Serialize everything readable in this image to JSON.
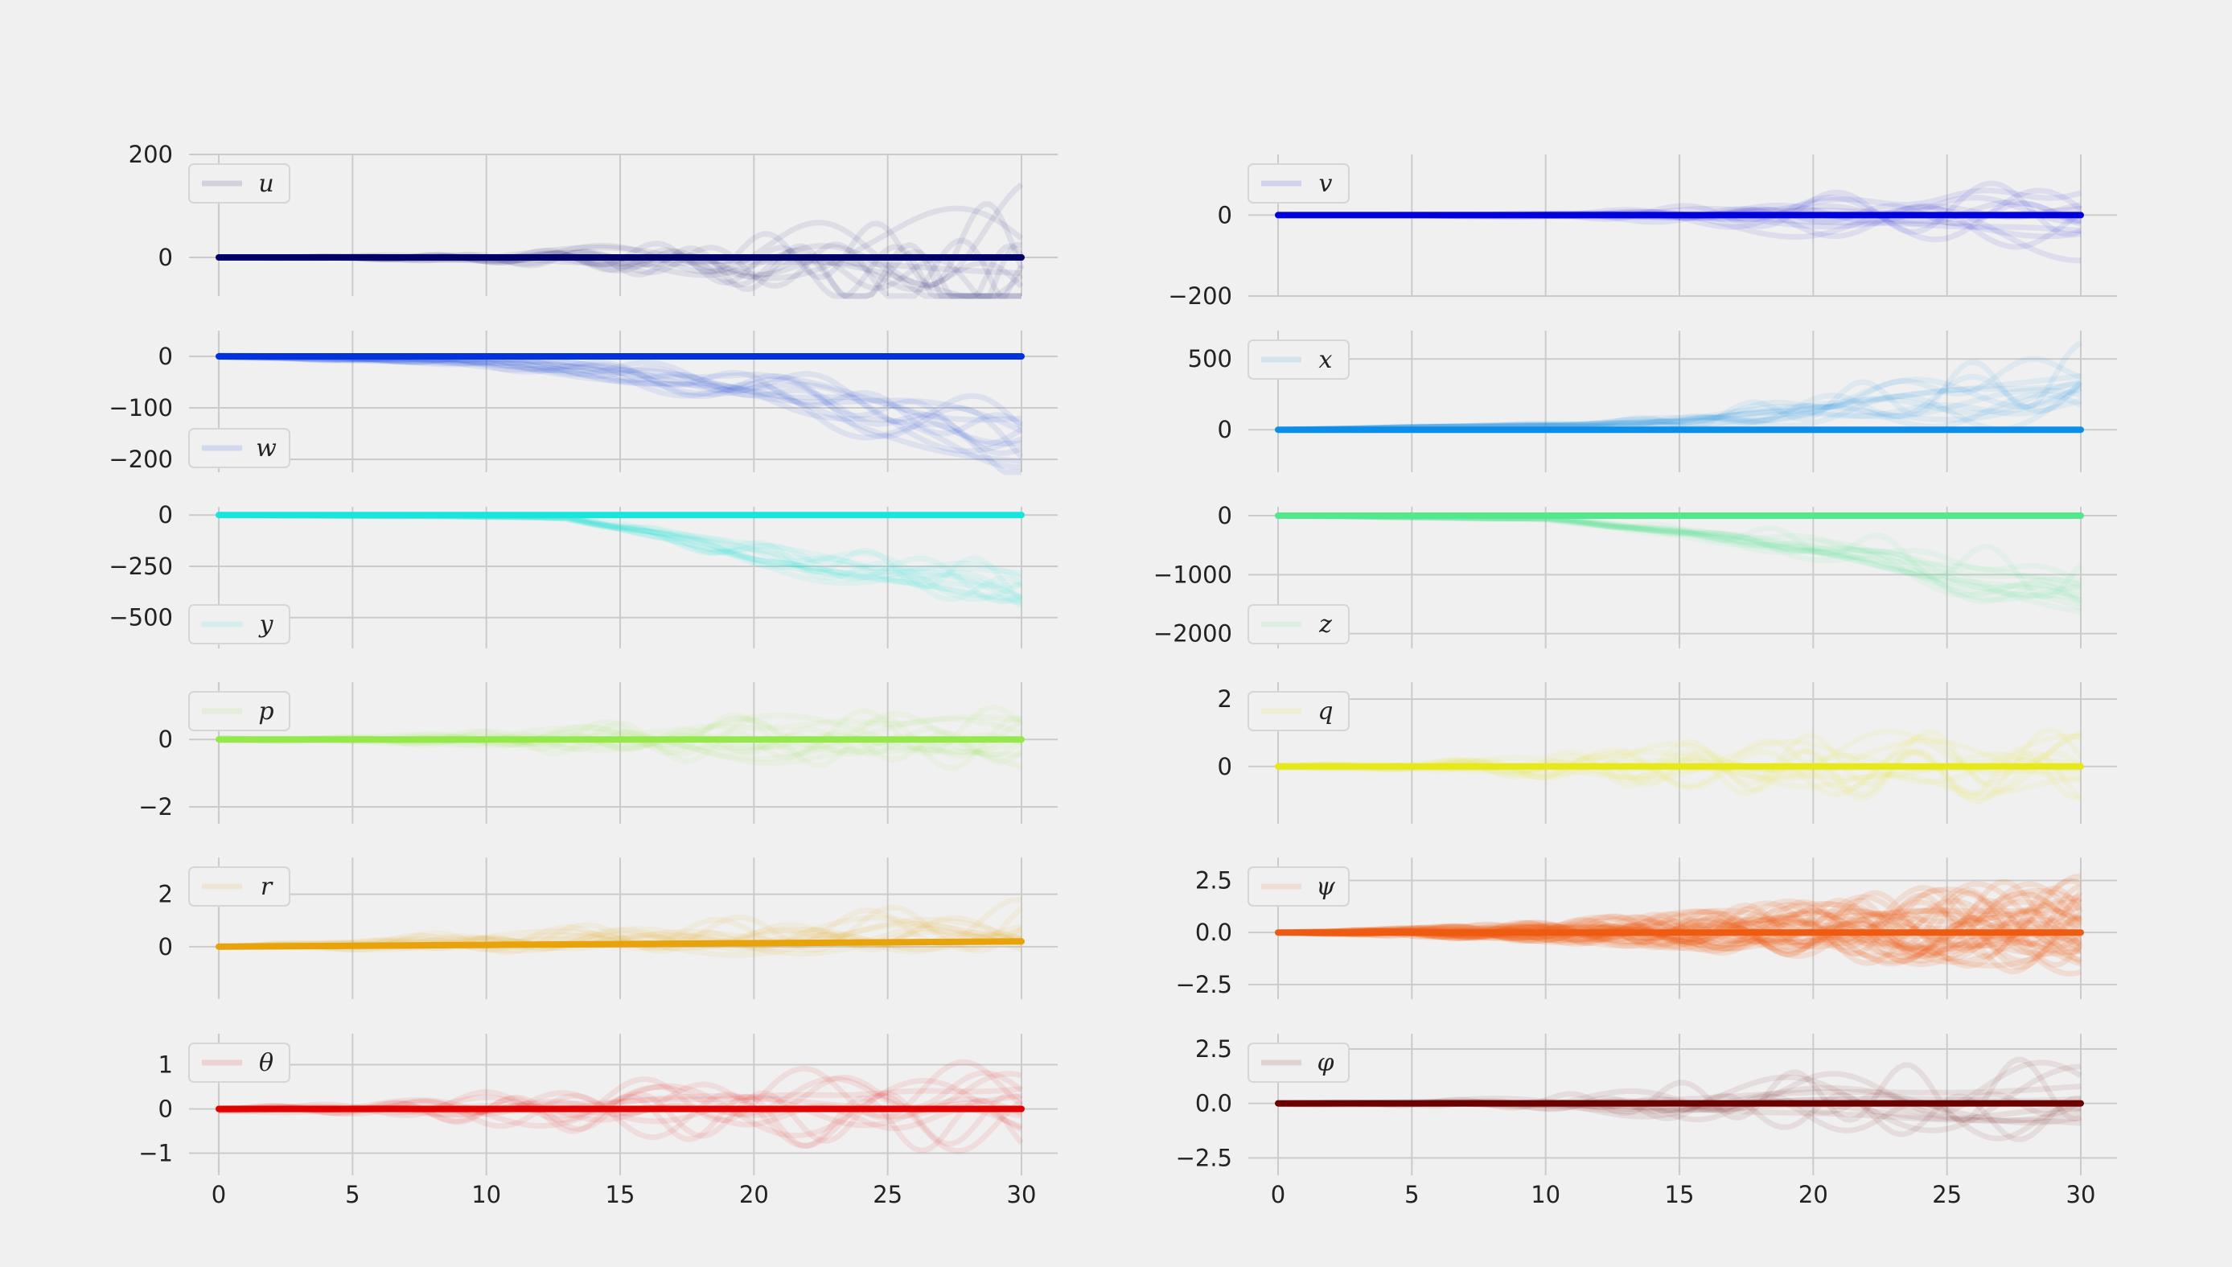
{
  "chart_data": {
    "type": "line",
    "layout": "6 rows x 2 columns of subplots with shared x axis",
    "x_range": [
      0,
      30
    ],
    "xticks": [
      0,
      5,
      10,
      15,
      20,
      25,
      30
    ],
    "xticklabels": [
      "0",
      "5",
      "10",
      "15",
      "20",
      "25",
      "30"
    ],
    "grid": true,
    "subplots": [
      {
        "label": "u",
        "color": "#000066",
        "legend": "upper-left",
        "ylim": [
          -75,
          200
        ],
        "yticks": [
          0,
          200
        ],
        "yticklabels": [
          "0",
          "200"
        ],
        "mean": [
          [
            0,
            0
          ],
          [
            30,
            0
          ]
        ],
        "spread": [
          [
            0,
            0
          ],
          [
            5,
            5
          ],
          [
            10,
            15
          ],
          [
            15,
            40
          ],
          [
            20,
            80
          ],
          [
            25,
            120
          ],
          [
            30,
            200
          ]
        ]
      },
      {
        "label": "v",
        "color": "#0000dd",
        "legend": "upper-left",
        "ylim": [
          -200,
          150
        ],
        "yticks": [
          0,
          -200
        ],
        "yticklabels": [
          "0",
          "−200"
        ],
        "mean": [
          [
            0,
            0
          ],
          [
            30,
            0
          ]
        ],
        "spread": [
          [
            0,
            0
          ],
          [
            5,
            3
          ],
          [
            10,
            10
          ],
          [
            15,
            40
          ],
          [
            20,
            90
          ],
          [
            25,
            120
          ],
          [
            30,
            140
          ]
        ]
      },
      {
        "label": "w",
        "color": "#0033dd",
        "legend": "lower-left",
        "ylim": [
          -225,
          50
        ],
        "yticks": [
          0,
          -100,
          -200
        ],
        "yticklabels": [
          "0",
          "−100",
          "−200"
        ],
        "mean": [
          [
            0,
            0
          ],
          [
            30,
            0
          ]
        ],
        "spread": [
          [
            0,
            5
          ],
          [
            5,
            8
          ],
          [
            10,
            20
          ],
          [
            15,
            40
          ],
          [
            20,
            60
          ],
          [
            25,
            80
          ],
          [
            30,
            100
          ]
        ],
        "trend": [
          [
            0,
            0
          ],
          [
            10,
            -10
          ],
          [
            20,
            -60
          ],
          [
            30,
            -170
          ]
        ]
      },
      {
        "label": "x",
        "color": "#0a8ee8",
        "legend": "upper-left",
        "ylim": [
          -300,
          700
        ],
        "yticks": [
          500,
          0
        ],
        "yticklabels": [
          "500",
          "0"
        ],
        "mean": [
          [
            0,
            0
          ],
          [
            30,
            0
          ]
        ],
        "spread": [
          [
            0,
            0
          ],
          [
            10,
            20
          ],
          [
            15,
            80
          ],
          [
            20,
            180
          ],
          [
            25,
            300
          ],
          [
            30,
            400
          ]
        ],
        "trend": [
          [
            0,
            0
          ],
          [
            15,
            50
          ],
          [
            20,
            150
          ],
          [
            30,
            300
          ]
        ]
      },
      {
        "label": "y",
        "color": "#18e6dc",
        "legend": "lower-left",
        "ylim": [
          -650,
          40
        ],
        "yticks": [
          0,
          -250,
          -500
        ],
        "yticklabels": [
          "0",
          "−250",
          "−500"
        ],
        "mean": [
          [
            0,
            0
          ],
          [
            30,
            0
          ]
        ],
        "spread": [
          [
            0,
            0
          ],
          [
            12,
            10
          ],
          [
            15,
            40
          ],
          [
            20,
            100
          ],
          [
            25,
            150
          ],
          [
            30,
            200
          ]
        ],
        "trend": [
          [
            0,
            0
          ],
          [
            13,
            -10
          ],
          [
            20,
            -200
          ],
          [
            30,
            -380
          ]
        ]
      },
      {
        "label": "z",
        "color": "#52e88c",
        "legend": "lower-left",
        "ylim": [
          -2250,
          150
        ],
        "yticks": [
          0,
          -1000,
          -2000
        ],
        "yticklabels": [
          "0",
          "−1000",
          "−2000"
        ],
        "mean": [
          [
            0,
            0
          ],
          [
            30,
            0
          ]
        ],
        "spread": [
          [
            0,
            0
          ],
          [
            10,
            50
          ],
          [
            15,
            150
          ],
          [
            20,
            400
          ],
          [
            25,
            600
          ],
          [
            30,
            800
          ]
        ],
        "trend": [
          [
            0,
            0
          ],
          [
            10,
            -50
          ],
          [
            20,
            -500
          ],
          [
            30,
            -1300
          ]
        ]
      },
      {
        "label": "p",
        "color": "#94e84a",
        "legend": "upper-left",
        "ylim": [
          -2.5,
          1.7
        ],
        "yticks": [
          0,
          -2
        ],
        "yticklabels": [
          "0",
          "−2"
        ],
        "mean": [
          [
            0,
            0
          ],
          [
            30,
            0
          ]
        ],
        "spread": [
          [
            0,
            0.1
          ],
          [
            5,
            0.15
          ],
          [
            10,
            0.5
          ],
          [
            15,
            1.0
          ],
          [
            20,
            1.3
          ],
          [
            25,
            1.4
          ],
          [
            30,
            1.5
          ]
        ]
      },
      {
        "label": "q",
        "color": "#e6e818",
        "legend": "upper-left",
        "ylim": [
          -1.7,
          2.5
        ],
        "yticks": [
          2,
          0
        ],
        "yticklabels": [
          "2",
          "0"
        ],
        "mean": [
          [
            0,
            0
          ],
          [
            30,
            0
          ]
        ],
        "spread": [
          [
            0,
            0.1
          ],
          [
            5,
            0.2
          ],
          [
            10,
            0.7
          ],
          [
            15,
            1.2
          ],
          [
            20,
            1.5
          ],
          [
            25,
            1.6
          ],
          [
            30,
            1.6
          ]
        ]
      },
      {
        "label": "r",
        "color": "#e8a20a",
        "legend": "upper-left",
        "ylim": [
          -2.0,
          3.4
        ],
        "yticks": [
          2,
          0
        ],
        "yticklabels": [
          "2",
          "0"
        ],
        "mean": [
          [
            0,
            0
          ],
          [
            30,
            0.2
          ]
        ],
        "spread": [
          [
            0,
            0
          ],
          [
            5,
            0.4
          ],
          [
            10,
            0.8
          ],
          [
            15,
            1.0
          ],
          [
            20,
            1.2
          ],
          [
            25,
            1.5
          ],
          [
            30,
            1.8
          ]
        ],
        "trend": [
          [
            0,
            0
          ],
          [
            30,
            0.5
          ]
        ]
      },
      {
        "label": "ψ",
        "color": "#ee5a10",
        "legend": "upper-left",
        "ylim": [
          -3.2,
          3.6
        ],
        "yticks": [
          2.5,
          0,
          -2.5
        ],
        "yticklabels": [
          "2.5",
          "0.0",
          "−2.5"
        ],
        "mean": [
          [
            0,
            0
          ],
          [
            30,
            0
          ]
        ],
        "spread": [
          [
            0,
            0
          ],
          [
            5,
            0.4
          ],
          [
            10,
            0.9
          ],
          [
            15,
            1.5
          ],
          [
            20,
            2.2
          ],
          [
            25,
            2.8
          ],
          [
            30,
            3.1
          ]
        ]
      },
      {
        "label": "θ",
        "color": "#e00000",
        "legend": "upper-left",
        "ylim": [
          -1.5,
          1.7
        ],
        "yticks": [
          1,
          0,
          -1
        ],
        "yticklabels": [
          "1",
          "0",
          "−1"
        ],
        "mean": [
          [
            0,
            0
          ],
          [
            30,
            0
          ]
        ],
        "spread": [
          [
            0,
            0.1
          ],
          [
            5,
            0.2
          ],
          [
            10,
            0.6
          ],
          [
            15,
            0.9
          ],
          [
            20,
            1.1
          ],
          [
            25,
            1.2
          ],
          [
            30,
            1.2
          ]
        ]
      },
      {
        "label": "φ",
        "color": "#6a0000",
        "legend": "upper-left",
        "ylim": [
          -3.3,
          3.2
        ],
        "yticks": [
          2.5,
          0,
          -2.5
        ],
        "yticklabels": [
          "2.5",
          "0.0",
          "−2.5"
        ],
        "mean": [
          [
            0,
            0
          ],
          [
            30,
            0
          ]
        ],
        "spread": [
          [
            0,
            0.1
          ],
          [
            5,
            0.2
          ],
          [
            10,
            0.6
          ],
          [
            15,
            1.6
          ],
          [
            20,
            2.4
          ],
          [
            25,
            2.8
          ],
          [
            30,
            3.0
          ]
        ]
      }
    ]
  }
}
